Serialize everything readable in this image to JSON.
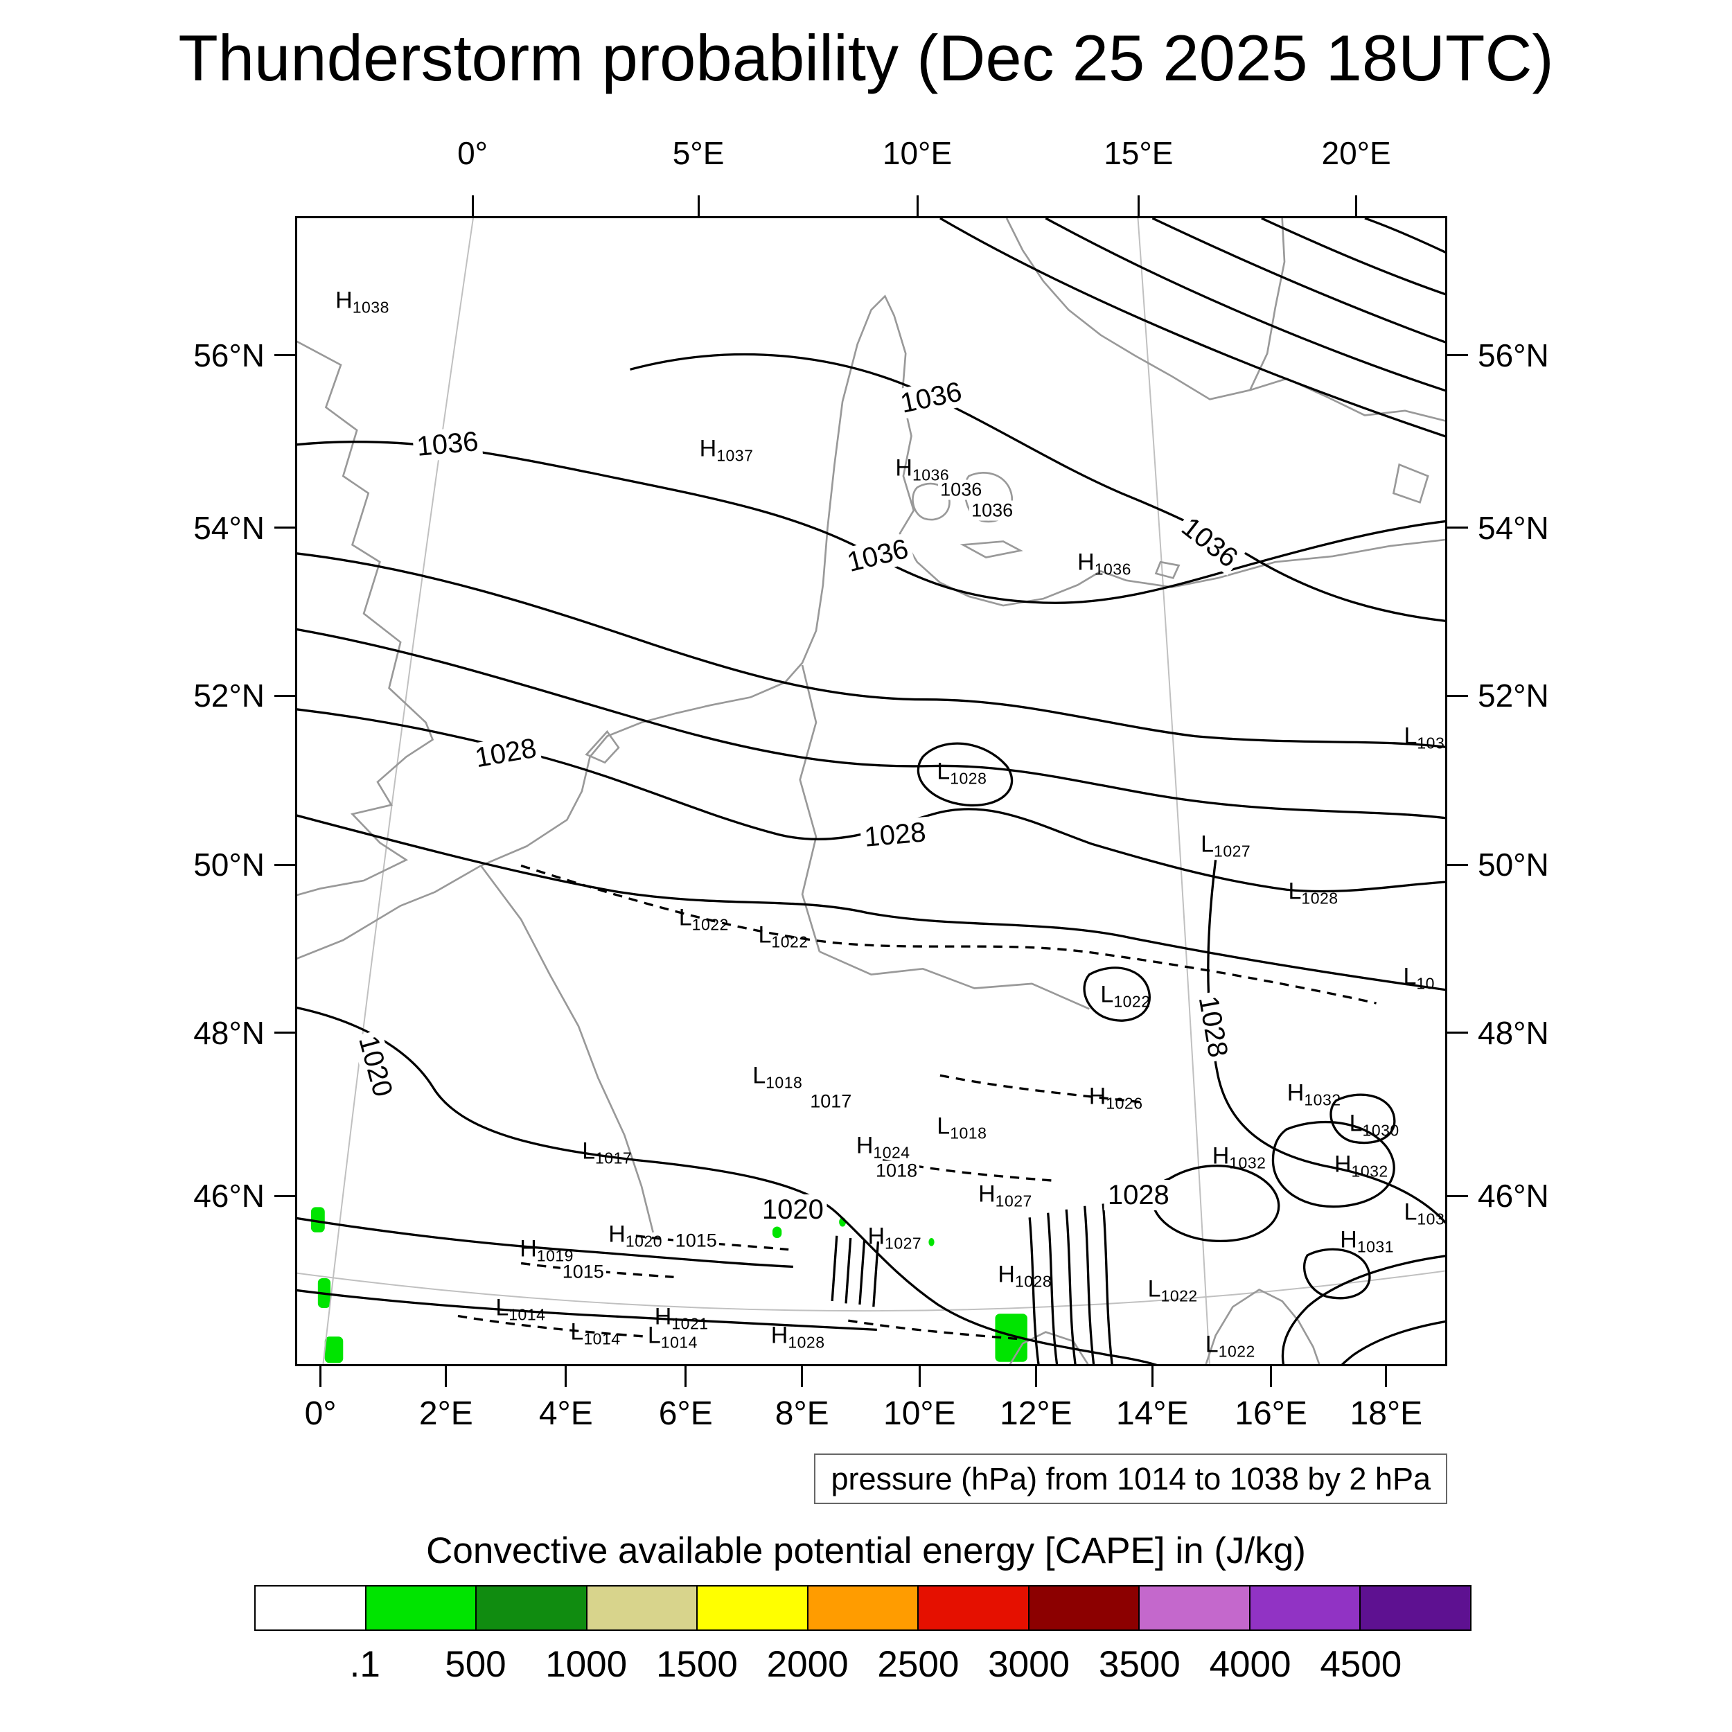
{
  "title": "Thunderstorm probability (Dec 25 2025 18UTC)",
  "captions": {
    "pressure": "pressure (hPa) from 1014 to 1038 by 2 hPa",
    "cape": "Convective available potential energy [CAPE] in (J/kg)"
  },
  "chart_data": {
    "type": "contour-map",
    "title": "Thunderstorm probability (Dec 25 2025 18UTC)",
    "pressure_field": {
      "unit": "hPa",
      "min": 1014,
      "max": 1038,
      "interval": 2
    },
    "axes": {
      "top": [
        {
          "label": "0°",
          "pos": 15.4
        },
        {
          "label": "5°E",
          "pos": 35.0
        },
        {
          "label": "10°E",
          "pos": 54.0
        },
        {
          "label": "15°E",
          "pos": 73.2
        },
        {
          "label": "20°E",
          "pos": 92.1
        }
      ],
      "bottom": [
        {
          "label": "0°",
          "pos": 2.2
        },
        {
          "label": "2°E",
          "pos": 13.1
        },
        {
          "label": "4°E",
          "pos": 23.5
        },
        {
          "label": "6°E",
          "pos": 33.9
        },
        {
          "label": "8°E",
          "pos": 44.0
        },
        {
          "label": "10°E",
          "pos": 54.2
        },
        {
          "label": "12°E",
          "pos": 64.3
        },
        {
          "label": "14°E",
          "pos": 74.4
        },
        {
          "label": "16°E",
          "pos": 84.7
        },
        {
          "label": "18°E",
          "pos": 94.7
        }
      ],
      "left": [
        {
          "label": "56°N",
          "pos": 12.1
        },
        {
          "label": "54°N",
          "pos": 27.1
        },
        {
          "label": "52°N",
          "pos": 41.7
        },
        {
          "label": "50°N",
          "pos": 56.4
        },
        {
          "label": "48°N",
          "pos": 71.0
        },
        {
          "label": "46°N",
          "pos": 85.2
        }
      ],
      "right": [
        {
          "label": "56°N",
          "pos": 12.1
        },
        {
          "label": "54°N",
          "pos": 27.1
        },
        {
          "label": "52°N",
          "pos": 41.7
        },
        {
          "label": "50°N",
          "pos": 56.4
        },
        {
          "label": "48°N",
          "pos": 71.0
        },
        {
          "label": "46°N",
          "pos": 85.2
        }
      ]
    },
    "colorbar": {
      "title": "Convective available potential energy [CAPE] in (J/kg)",
      "unit": "J/kg",
      "labels": [
        ".1",
        "500",
        "1000",
        "1500",
        "2000",
        "2500",
        "3000",
        "3500",
        "4000",
        "4500"
      ],
      "colors": [
        "#ffffff",
        "#00e400",
        "#108c10",
        "#d8d48c",
        "#ffff00",
        "#ff9c00",
        "#e51000",
        "#8c0000",
        "#c468cc",
        "#9133c4",
        "#5e1191"
      ]
    },
    "cape_color": "#00e400",
    "pressure_centers": [
      {
        "t": "H",
        "v": "1038",
        "x": 4.9,
        "y": 7.4
      },
      {
        "t": "H",
        "v": "1037",
        "x": 36.5,
        "y": 20.3
      },
      {
        "t": "H",
        "v": "1036",
        "x": 53.5,
        "y": 22.0
      },
      {
        "t": "H",
        "v": "1036",
        "x": 69.3,
        "y": 30.2
      },
      {
        "t": "L",
        "v": "1028",
        "x": 57.0,
        "y": 48.4
      },
      {
        "t": "L",
        "v": "103",
        "x": 97.3,
        "y": 45.3
      },
      {
        "t": "L",
        "v": "1027",
        "x": 79.9,
        "y": 54.7
      },
      {
        "t": "L",
        "v": "1028",
        "x": 87.5,
        "y": 58.8
      },
      {
        "t": "L",
        "v": "1022",
        "x": 34.6,
        "y": 61.1
      },
      {
        "t": "L",
        "v": "1022",
        "x": 41.5,
        "y": 62.6
      },
      {
        "t": "L",
        "v": "10",
        "x": 97.0,
        "y": 66.2
      },
      {
        "t": "L",
        "v": "1022",
        "x": 71.2,
        "y": 67.8
      },
      {
        "t": "L",
        "v": "1018",
        "x": 41.0,
        "y": 74.8
      },
      {
        "t": "H",
        "v": "1026",
        "x": 70.3,
        "y": 76.6
      },
      {
        "t": "H",
        "v": "1032",
        "x": 87.5,
        "y": 76.3
      },
      {
        "t": "L",
        "v": "1030",
        "x": 92.8,
        "y": 79.0
      },
      {
        "t": "L",
        "v": "1018",
        "x": 57.0,
        "y": 79.2
      },
      {
        "t": "H",
        "v": "1024",
        "x": 50.1,
        "y": 80.9
      },
      {
        "t": "L",
        "v": "1017",
        "x": 26.2,
        "y": 81.4
      },
      {
        "t": "H",
        "v": "1032",
        "x": 81.0,
        "y": 81.8
      },
      {
        "t": "H",
        "v": "1032",
        "x": 91.6,
        "y": 82.5
      },
      {
        "t": "H",
        "v": "1027",
        "x": 60.7,
        "y": 85.1
      },
      {
        "t": "L",
        "v": "103",
        "x": 97.3,
        "y": 86.7
      },
      {
        "t": "H",
        "v": "1020",
        "x": 28.6,
        "y": 88.6
      },
      {
        "t": "H",
        "v": "1027",
        "x": 51.1,
        "y": 88.8
      },
      {
        "t": "H",
        "v": "1019",
        "x": 20.9,
        "y": 89.9
      },
      {
        "t": "H",
        "v": "1031",
        "x": 92.1,
        "y": 89.1
      },
      {
        "t": "H",
        "v": "1028",
        "x": 62.4,
        "y": 92.1
      },
      {
        "t": "L",
        "v": "1022",
        "x": 75.3,
        "y": 93.4
      },
      {
        "t": "L",
        "v": "1014",
        "x": 18.7,
        "y": 95.0
      },
      {
        "t": "H",
        "v": "1021",
        "x": 32.6,
        "y": 95.8
      },
      {
        "t": "L",
        "v": "1014",
        "x": 25.2,
        "y": 97.1
      },
      {
        "t": "L",
        "v": "1014",
        "x": 31.9,
        "y": 97.4
      },
      {
        "t": "H",
        "v": "1028",
        "x": 42.7,
        "y": 97.4
      },
      {
        "t": "L",
        "v": "1022",
        "x": 80.3,
        "y": 98.2
      }
    ],
    "contour_labels": [
      {
        "v": "1036",
        "x": 13.2,
        "y": 19.8,
        "r": -5
      },
      {
        "v": "1036",
        "x": 55.2,
        "y": 15.8,
        "r": -12
      },
      {
        "v": "1036",
        "x": 57.8,
        "y": 23.8,
        "r": 0,
        "s": 1
      },
      {
        "v": "1036",
        "x": 60.5,
        "y": 25.6,
        "r": 0,
        "s": 1
      },
      {
        "v": "1036",
        "x": 50.6,
        "y": 29.5,
        "r": -14
      },
      {
        "v": "1036",
        "x": 79.4,
        "y": 28.4,
        "r": 38
      },
      {
        "v": "1028",
        "x": 18.3,
        "y": 46.7,
        "r": -10
      },
      {
        "v": "1028",
        "x": 52.1,
        "y": 53.8,
        "r": -5
      },
      {
        "v": "1028",
        "x": 79.7,
        "y": 70.5,
        "r": 80
      },
      {
        "v": "1020",
        "x": 7.0,
        "y": 73.9,
        "r": 75
      },
      {
        "v": "1017",
        "x": 46.5,
        "y": 77.0,
        "r": 0,
        "s": 1
      },
      {
        "v": "1018",
        "x": 52.2,
        "y": 83.0,
        "r": 0,
        "s": 1
      },
      {
        "v": "1020",
        "x": 43.2,
        "y": 86.4,
        "r": 0
      },
      {
        "v": "1028",
        "x": 73.2,
        "y": 85.1,
        "r": 0
      },
      {
        "v": "1015",
        "x": 34.8,
        "y": 89.1,
        "r": 0,
        "s": 1
      },
      {
        "v": "1015",
        "x": 25.0,
        "y": 91.8,
        "r": 0,
        "s": 1
      }
    ],
    "cape_spots": [
      {
        "x": 1.2,
        "y": 86.3,
        "w": 1.2,
        "h": 2.2
      },
      {
        "x": 1.8,
        "y": 92.5,
        "w": 1.1,
        "h": 2.6
      },
      {
        "x": 2.4,
        "y": 97.6,
        "w": 1.6,
        "h": 2.3
      },
      {
        "x": 60.8,
        "y": 95.6,
        "w": 2.8,
        "h": 4.2
      },
      {
        "x": 41.4,
        "y": 88.0,
        "w": 0.8,
        "h": 1.0
      },
      {
        "x": 47.2,
        "y": 87.2,
        "w": 0.6,
        "h": 0.8
      },
      {
        "x": 55.0,
        "y": 89.0,
        "w": 0.5,
        "h": 0.7
      }
    ]
  }
}
